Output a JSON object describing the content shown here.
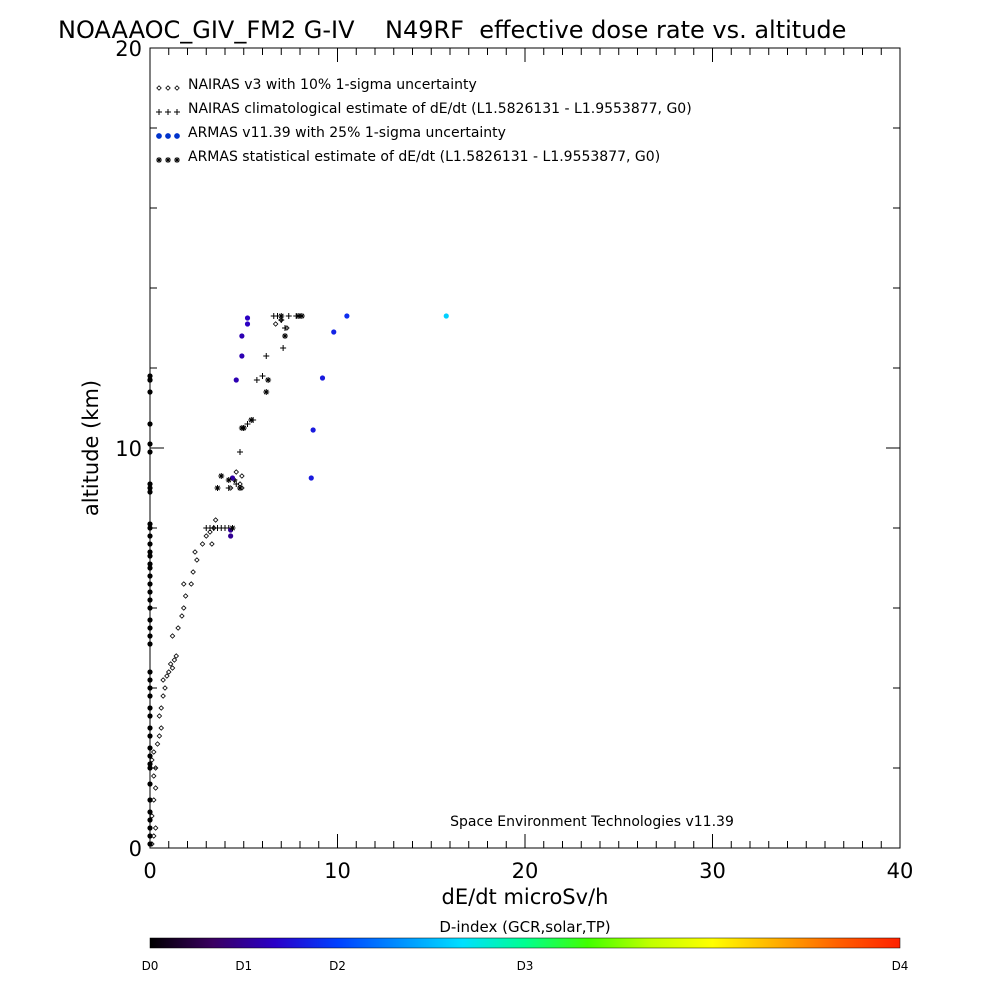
{
  "chart_data": {
    "type": "scatter",
    "title": "NOAAAOC_GIV_FM2 G-IV    N49RF  effective dose rate vs. altitude",
    "xlabel": "dE/dt microSv/h",
    "ylabel": "altitude (km)",
    "xlim": [
      0,
      40
    ],
    "ylim": [
      0,
      20
    ],
    "x_ticks": [
      {
        "value": 0,
        "label": "0"
      },
      {
        "value": 10,
        "label": "10"
      },
      {
        "value": 20,
        "label": "20"
      },
      {
        "value": 30,
        "label": "30"
      },
      {
        "value": 40,
        "label": "40"
      }
    ],
    "y_ticks": [
      {
        "value": 0,
        "label": "0"
      },
      {
        "value": 10,
        "label": "10"
      },
      {
        "value": 20,
        "label": "20"
      }
    ],
    "x_minor_step": 1,
    "y_minor_step": 2,
    "grid": false,
    "legend_position": "top-left",
    "legend": [
      {
        "marker": "diamond",
        "label": "NAIRAS v3 with 10% 1-sigma uncertainty"
      },
      {
        "marker": "plus",
        "label": "NAIRAS climatological estimate of dE/dt (L1.5826131 - L1.9553877, G0)"
      },
      {
        "marker": "dot",
        "label": "ARMAS v11.39 with 25% 1-sigma uncertainty",
        "color": "#0033cc"
      },
      {
        "marker": "asterisk",
        "label": "ARMAS statistical estimate of dE/dt (L1.5826131 - L1.9553877, G0)"
      }
    ],
    "annotation": "Space Environment Technologies v11.39",
    "colorbar": {
      "title": "D-index (GCR,solar,TP)",
      "labels": [
        {
          "value": 0,
          "label": "D0"
        },
        {
          "value": 1,
          "label": "D1"
        },
        {
          "value": 2,
          "label": "D2"
        },
        {
          "value": 3,
          "label": "D3"
        },
        {
          "value": 4,
          "label": "D4"
        }
      ],
      "label_fractions": [
        0,
        0.125,
        0.25,
        0.5,
        1.0
      ],
      "colors": [
        "#000000",
        "#3a0060",
        "#2a00c8",
        "#0040ff",
        "#0090ff",
        "#00e0ff",
        "#00ff90",
        "#40ff00",
        "#c0ff00",
        "#ffff00",
        "#ffb000",
        "#ff6000",
        "#ff2000"
      ]
    },
    "series": [
      {
        "name": "NAIRAS v3 with 10% 1-sigma uncertainty",
        "marker": "diamond",
        "color": "#000000",
        "x": [
          0.1,
          0.2,
          0.3,
          0.1,
          0.2,
          0.3,
          0.2,
          0.3,
          0.1,
          0.2,
          0.4,
          0.5,
          0.6,
          0.5,
          0.6,
          0.7,
          0.8,
          0.7,
          0.9,
          1.0,
          1.1,
          1.2,
          1.3,
          1.4,
          1.2,
          1.5,
          1.7,
          1.8,
          1.9,
          1.8,
          2.2,
          2.3,
          2.5,
          2.4,
          2.8,
          3.0,
          3.3,
          3.2,
          3.5,
          3.4,
          4.3,
          4.5,
          4.6,
          4.8,
          4.9,
          4.9,
          6.7,
          7.0,
          7.3
        ],
        "y": [
          0.1,
          0.3,
          0.5,
          0.8,
          1.2,
          1.5,
          1.8,
          2.0,
          2.2,
          2.4,
          2.6,
          2.8,
          3.0,
          3.3,
          3.5,
          3.8,
          4.0,
          4.2,
          4.3,
          4.4,
          4.6,
          4.5,
          4.7,
          4.8,
          5.3,
          5.5,
          5.8,
          6.0,
          6.3,
          6.6,
          6.6,
          6.9,
          7.2,
          7.4,
          7.6,
          7.8,
          7.6,
          7.9,
          8.2,
          8.0,
          9.0,
          9.2,
          9.4,
          9.1,
          9.0,
          9.3,
          13.1,
          13.2,
          13.0
        ]
      },
      {
        "name": "NAIRAS climatological estimate of dE/dt (L1.5826131 - L1.9553877, G0)",
        "marker": "plus",
        "color": "#000000",
        "x": [
          3.0,
          3.2,
          3.4,
          3.6,
          3.8,
          4.0,
          4.2,
          4.4,
          4.2,
          4.5,
          4.6,
          4.8,
          5.0,
          5.2,
          5.5,
          5.7,
          6.0,
          6.2,
          6.6,
          6.8,
          7.0,
          7.2,
          7.4,
          7.1,
          7.8,
          8.0
        ],
        "y": [
          8.0,
          8.0,
          8.0,
          8.0,
          8.0,
          8.0,
          8.0,
          8.0,
          9.0,
          9.2,
          9.1,
          9.9,
          10.5,
          10.6,
          10.7,
          11.7,
          11.8,
          12.3,
          13.3,
          13.3,
          13.2,
          13.0,
          13.3,
          12.5,
          13.3,
          13.3
        ]
      },
      {
        "name": "ARMAS v11.39 with 25% 1-sigma uncertainty",
        "marker": "dot",
        "x": [
          0.0,
          0.0,
          0.0,
          0.0,
          0.0,
          0.0,
          0.0,
          0.0,
          0.0,
          0.0,
          0.0,
          0.0,
          0.0,
          0.0,
          0.0,
          0.0,
          0.0,
          0.0,
          0.0,
          0.0,
          0.0,
          0.0,
          0.0,
          0.0,
          0.0,
          0.0,
          0.0,
          0.0,
          0.0,
          0.0,
          0.0,
          0.0,
          0.0,
          0.0,
          0.0,
          0.0,
          0.0,
          0.0,
          0.0,
          0.0,
          0.0,
          0.0,
          0.0,
          0.0,
          0.0,
          0.0,
          4.3,
          4.3,
          4.4,
          4.6,
          4.9,
          4.9,
          5.2,
          5.2,
          8.6,
          8.7,
          9.2,
          9.8,
          10.5,
          15.8
        ],
        "y": [
          0.1,
          0.3,
          0.5,
          0.7,
          0.9,
          1.2,
          1.6,
          2.0,
          2.1,
          2.3,
          2.5,
          2.8,
          3.0,
          3.3,
          3.5,
          3.8,
          4.0,
          4.2,
          4.4,
          5.1,
          5.3,
          5.5,
          5.7,
          6.0,
          6.2,
          6.4,
          6.6,
          6.8,
          7.0,
          7.1,
          7.3,
          7.4,
          7.6,
          7.8,
          8.0,
          8.1,
          8.9,
          9.0,
          9.1,
          9.9,
          10.1,
          10.6,
          11.4,
          11.7,
          11.7,
          11.8,
          7.8,
          7.95,
          9.25,
          11.7,
          12.3,
          12.8,
          13.1,
          13.25,
          9.25,
          10.45,
          11.75,
          12.9,
          13.3,
          13.3
        ],
        "d_index": [
          0,
          0,
          0,
          0,
          0,
          0,
          0,
          0,
          0,
          0,
          0,
          0,
          0,
          0,
          0,
          0,
          0,
          0,
          0,
          0,
          0,
          0,
          0,
          0,
          0,
          0,
          0,
          0,
          0,
          0,
          0,
          0,
          0,
          0,
          0,
          0,
          0,
          0,
          0,
          0,
          0,
          0,
          0,
          0,
          0,
          0,
          0.5,
          0.5,
          0.55,
          0.6,
          0.6,
          0.6,
          0.65,
          0.65,
          0.8,
          0.8,
          0.8,
          0.85,
          0.9,
          1.6
        ]
      },
      {
        "name": "ARMAS statistical estimate of dE/dt (L1.5826131 - L1.9553877, G0)",
        "marker": "asterisk",
        "color": "#000000",
        "x": [
          3.6,
          3.8,
          4.2,
          4.4,
          4.8,
          5.0,
          4.9,
          5.4,
          6.2,
          6.3,
          7.2,
          7.0,
          8.1,
          7.9
        ],
        "y": [
          9.0,
          9.3,
          9.2,
          8.0,
          9.0,
          10.5,
          10.5,
          10.7,
          11.4,
          11.7,
          12.8,
          13.3,
          13.3,
          13.3
        ]
      }
    ]
  }
}
